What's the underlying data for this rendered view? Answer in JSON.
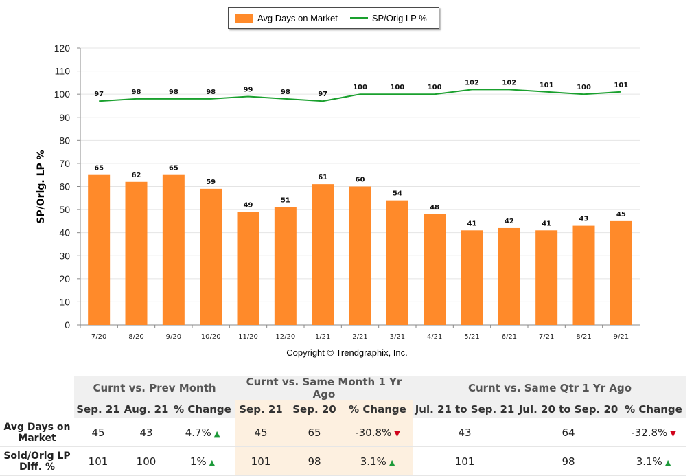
{
  "legend": {
    "bar_label": "Avg Days on Market",
    "line_label": "SP/Orig LP %"
  },
  "copyright": "Copyright © Trendgraphix, Inc.",
  "chart_data": {
    "type": "bar",
    "categories": [
      "7/20",
      "8/20",
      "9/20",
      "10/20",
      "11/20",
      "12/20",
      "1/21",
      "2/21",
      "3/21",
      "4/21",
      "5/21",
      "6/21",
      "7/21",
      "8/21",
      "9/21"
    ],
    "series": [
      {
        "name": "Avg Days on Market",
        "type": "bar",
        "color": "#ff8a2a",
        "values": [
          65,
          62,
          65,
          59,
          49,
          51,
          61,
          60,
          54,
          48,
          41,
          42,
          41,
          43,
          45
        ]
      },
      {
        "name": "SP/Orig LP %",
        "type": "line",
        "color": "#1aa02e",
        "values": [
          97,
          98,
          98,
          98,
          99,
          98,
          97,
          100,
          100,
          100,
          102,
          102,
          101,
          100,
          101
        ]
      }
    ],
    "ylabel": "SP/Orig. LP %",
    "ylim": [
      0,
      120
    ],
    "yticks": [
      0,
      10,
      20,
      30,
      40,
      50,
      60,
      70,
      80,
      90,
      100,
      110,
      120
    ],
    "grid": true,
    "legend_position": "top-center"
  },
  "table": {
    "groups": [
      "Curnt vs. Prev Month",
      "Curnt vs. Same Month 1 Yr Ago",
      "Curnt vs. Same Qtr 1 Yr Ago"
    ],
    "subheaders": [
      "Sep. 21",
      "Aug. 21",
      "% Change",
      "Sep. 21",
      "Sep. 20",
      "% Change",
      "Jul. 21 to Sep. 21",
      "Jul. 20 to Sep. 20",
      "% Change"
    ],
    "rows": [
      {
        "label_line1": "Avg Days on",
        "label_line2": "Market",
        "cells": [
          "45",
          "43",
          "4.7%",
          "45",
          "65",
          "-30.8%",
          "43",
          "64",
          "-32.8%"
        ],
        "trends": [
          "up",
          "down",
          "down"
        ]
      },
      {
        "label_line1": "Sold/Orig LP",
        "label_line2": "Diff. %",
        "cells": [
          "101",
          "100",
          "1%",
          "101",
          "98",
          "3.1%",
          "101",
          "98",
          "3.1%"
        ],
        "trends": [
          "up",
          "up",
          "up"
        ]
      }
    ]
  }
}
